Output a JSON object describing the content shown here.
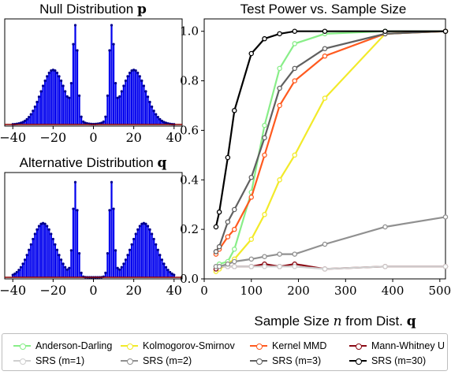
{
  "chart_data": [
    {
      "type": "bar",
      "title": "Null Distribution",
      "title_symbol": "p",
      "xticks": [
        "−40",
        "−20",
        "0",
        "20",
        "40"
      ],
      "xlim": [
        -44,
        44
      ],
      "color": "#0000ee",
      "peaks": [
        {
          "mu": -20,
          "sigma": 6,
          "amp": 0.55
        },
        {
          "mu": 20,
          "sigma": 6,
          "amp": 0.55
        },
        {
          "mu": -9,
          "sigma": 1.2,
          "amp": 0.95
        },
        {
          "mu": 9,
          "sigma": 1.2,
          "amp": 0.95
        }
      ]
    },
    {
      "type": "bar",
      "title": "Alternative Distribution",
      "title_symbol": "q",
      "xticks": [
        "−40",
        "−20",
        "0",
        "20",
        "40"
      ],
      "xlim": [
        -44,
        44
      ],
      "color": "#0000ee",
      "peaks": [
        {
          "mu": -25,
          "sigma": 6,
          "amp": 0.55
        },
        {
          "mu": 25,
          "sigma": 6,
          "amp": 0.55
        },
        {
          "mu": -9,
          "sigma": 1.2,
          "amp": 0.95
        },
        {
          "mu": 9,
          "sigma": 1.2,
          "amp": 0.95
        }
      ]
    },
    {
      "type": "line",
      "title": "Test Power vs. Sample Size",
      "xlabel": "Sample Size",
      "xlabel_var": "n",
      "xlabel_suffix": "from Dist.",
      "xlabel_symbol": "q",
      "xlim": [
        0,
        512
      ],
      "ylim": [
        0,
        1.05
      ],
      "xticks": [
        0,
        100,
        200,
        300,
        400,
        500
      ],
      "yticks": [
        "0.0",
        "0.2",
        "0.4",
        "0.6",
        "0.8",
        "1.0"
      ],
      "x": [
        25,
        32,
        50,
        64,
        100,
        128,
        160,
        192,
        256,
        384,
        512
      ],
      "series": [
        {
          "name": "Anderson-Darling",
          "color": "#88ee88",
          "values": [
            0.05,
            0.06,
            0.07,
            0.12,
            0.35,
            0.62,
            0.85,
            0.95,
            0.99,
            1.0,
            1.0
          ]
        },
        {
          "name": "Kolmogorov-Smirnov",
          "color": "#f2ea2a",
          "values": [
            0.03,
            0.04,
            0.06,
            0.08,
            0.16,
            0.26,
            0.4,
            0.5,
            0.73,
            0.99,
            1.0
          ]
        },
        {
          "name": "Kernel MMD",
          "color": "#ff5a1f",
          "values": [
            0.1,
            0.12,
            0.17,
            0.2,
            0.33,
            0.5,
            0.7,
            0.8,
            0.9,
            0.99,
            1.0
          ]
        },
        {
          "name": "Mann-Whitney U",
          "color": "#8b0a14",
          "values": [
            0.04,
            0.05,
            0.05,
            0.05,
            0.05,
            0.06,
            0.05,
            0.06,
            0.04,
            0.05,
            0.05
          ]
        },
        {
          "name": "SRS (m=1)",
          "color": "#cfcfcf",
          "values": [
            0.05,
            0.05,
            0.05,
            0.05,
            0.05,
            0.05,
            0.05,
            0.05,
            0.04,
            0.05,
            0.05
          ]
        },
        {
          "name": "SRS (m=2)",
          "color": "#909090",
          "values": [
            0.05,
            0.05,
            0.06,
            0.07,
            0.08,
            0.09,
            0.1,
            0.1,
            0.14,
            0.21,
            0.25
          ]
        },
        {
          "name": "SRS (m=3)",
          "color": "#606060",
          "values": [
            0.11,
            0.13,
            0.23,
            0.28,
            0.41,
            0.57,
            0.77,
            0.85,
            0.93,
            0.99,
            1.0
          ]
        },
        {
          "name": "SRS (m=30)",
          "color": "#000000",
          "values": [
            0.21,
            0.27,
            0.49,
            0.68,
            0.91,
            0.97,
            0.99,
            1.0,
            1.0,
            1.0,
            1.0
          ]
        }
      ]
    }
  ]
}
